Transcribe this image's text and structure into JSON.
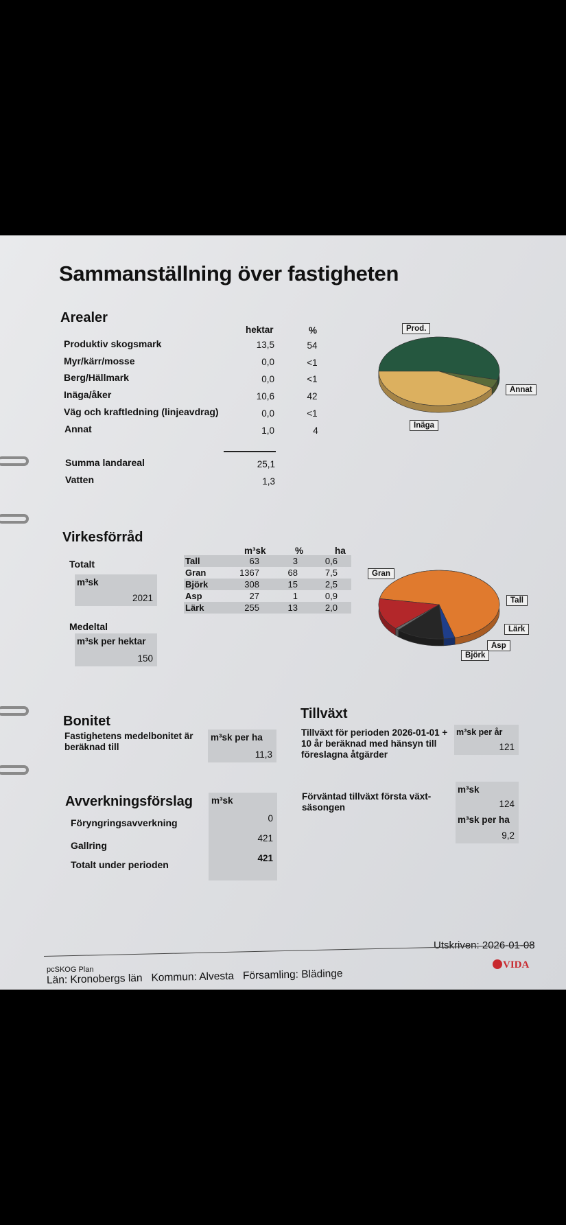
{
  "title": "Sammanställning över fastigheten",
  "arealer": {
    "heading": "Arealer",
    "col_hektar": "hektar",
    "col_pct": "%",
    "rows": [
      {
        "label": "Produktiv skogsmark",
        "hektar": "13,5",
        "pct": "54"
      },
      {
        "label": "Myr/kärr/mosse",
        "hektar": "0,0",
        "pct": "<1"
      },
      {
        "label": "Berg/Hällmark",
        "hektar": "0,0",
        "pct": "<1"
      },
      {
        "label": "Inäga/åker",
        "hektar": "10,6",
        "pct": "42"
      },
      {
        "label": "Väg och kraftledning (linjeavdrag)",
        "hektar": "0,0",
        "pct": "<1"
      },
      {
        "label": "Annat",
        "hektar": "1,0",
        "pct": "4"
      }
    ],
    "summa_label": "Summa landareal",
    "summa_value": "25,1",
    "vatten_label": "Vatten",
    "vatten_value": "1,3",
    "pie_labels": [
      "Prod.",
      "Annat",
      "Inäga"
    ]
  },
  "virkesforrad": {
    "heading": "Virkesförråd",
    "totalt_label": "Totalt",
    "totalt_unit": "m³sk",
    "totalt_value": "2021",
    "medeltal_label": "Medeltal",
    "medeltal_unit": "m³sk per hektar",
    "medeltal_value": "150",
    "col_m3sk": "m³sk",
    "col_pct": "%",
    "col_ha": "ha",
    "rows": [
      {
        "species": "Tall",
        "m3sk": "63",
        "pct": "3",
        "ha": "0,6"
      },
      {
        "species": "Gran",
        "m3sk": "1367",
        "pct": "68",
        "ha": "7,5"
      },
      {
        "species": "Björk",
        "m3sk": "308",
        "pct": "15",
        "ha": "2,5"
      },
      {
        "species": "Asp",
        "m3sk": "27",
        "pct": "1",
        "ha": "0,9"
      },
      {
        "species": "Lärk",
        "m3sk": "255",
        "pct": "13",
        "ha": "2,0"
      }
    ],
    "pie_labels": [
      "Gran",
      "Tall",
      "Lärk",
      "Asp",
      "Björk"
    ]
  },
  "pie_arealer": [
    {
      "name": "Prod.",
      "value": 54,
      "color": "#25573f"
    },
    {
      "name": "Annat",
      "value": 4,
      "color": "#5a6b3a"
    },
    {
      "name": "Inäga",
      "value": 42,
      "color": "#dcb05f"
    }
  ],
  "pie_virke": [
    {
      "name": "Gran",
      "value": 68,
      "color": "#e07a2e"
    },
    {
      "name": "Tall",
      "value": 3,
      "color": "#1f3e8a"
    },
    {
      "name": "Lärk",
      "value": 13,
      "color": "#262626"
    },
    {
      "name": "Asp",
      "value": 1,
      "color": "#6b6b6b"
    },
    {
      "name": "Björk",
      "value": 15,
      "color": "#b3272a"
    }
  ],
  "bonitet": {
    "heading": "Bonitet",
    "text": "Fastighetens medelbonitet är beräknad till",
    "unit": "m³sk per ha",
    "value": "11,3"
  },
  "tillvaxt": {
    "heading": "Tillväxt",
    "text": "Tillväxt för perioden 2026-01-01 + 10 år beräknad med hänsyn till föreslagna åtgärder",
    "unit": "m³sk per år",
    "value": "121",
    "forvantad_text": "Förväntad tillväxt första växt-säsongen",
    "forvantad_unit1": "m³sk",
    "forvantad_value1": "124",
    "forvantad_unit2": "m³sk per ha",
    "forvantad_value2": "9,2"
  },
  "avverkning": {
    "heading": "Avverkningsförslag",
    "unit": "m³sk",
    "rows": [
      {
        "label": "Föryngringsavverkning",
        "value": "0"
      },
      {
        "label": "Gallring",
        "value": "421"
      },
      {
        "label": "Totalt under perioden",
        "value": "421"
      }
    ]
  },
  "footer": {
    "utskriven": "Utskriven: 2026-01-08",
    "program": "pcSKOG Plan",
    "location": "Län: Kronobergs län   Kommun: Alvesta   Församling: Blädinge",
    "logo": "VIDA"
  }
}
